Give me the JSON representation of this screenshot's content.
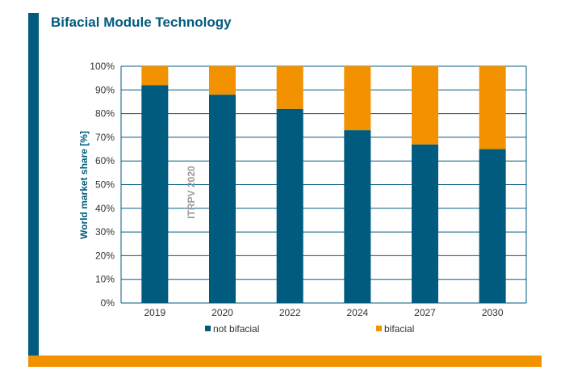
{
  "title": "Bifacial Module Technology",
  "colors": {
    "accent": "#005b7f",
    "highlight": "#f39200",
    "grid": "#005b7f"
  },
  "chart_data": {
    "type": "bar",
    "stacked": true,
    "categories": [
      "2019",
      "2020",
      "2022",
      "2024",
      "2027",
      "2030"
    ],
    "series": [
      {
        "name": "not bifacial",
        "color": "#005b7f",
        "values": [
          92,
          88,
          82,
          73,
          67,
          65
        ]
      },
      {
        "name": "bifacial",
        "color": "#f39200",
        "values": [
          8,
          12,
          18,
          27,
          33,
          35
        ]
      }
    ],
    "ylabel": "World market share [%]",
    "ylim": [
      0,
      100
    ],
    "yticks": [
      "0%",
      "10%",
      "20%",
      "30%",
      "40%",
      "50%",
      "60%",
      "70%",
      "80%",
      "90%",
      "100%"
    ],
    "grid": true,
    "legend": "bottom",
    "annotation": "ITRPV 2020"
  }
}
